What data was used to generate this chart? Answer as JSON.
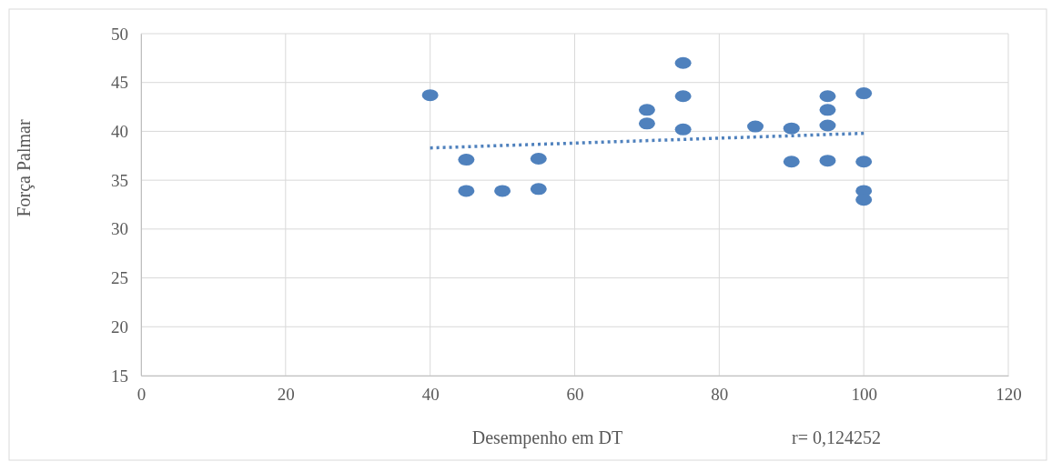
{
  "chart_data": {
    "type": "scatter",
    "xlabel": "Desempenho em DT",
    "ylabel": "Força Palmar",
    "xlim": [
      0,
      120
    ],
    "xticks": [
      0,
      20,
      40,
      60,
      80,
      100,
      120
    ],
    "ylim": [
      15,
      50
    ],
    "yticks": [
      15,
      20,
      25,
      30,
      35,
      40,
      45,
      50
    ],
    "grid": true,
    "marker": "circle",
    "annotations": [
      "r= 0,124252"
    ],
    "series": [
      {
        "color": "#4f81bd",
        "x": [
          40,
          45,
          45,
          50,
          55,
          55,
          70,
          70,
          75,
          75,
          75,
          85,
          90,
          90,
          95,
          95,
          95,
          95,
          100,
          100,
          100,
          100
        ],
        "values": [
          43.7,
          37.1,
          33.9,
          33.9,
          37.2,
          34.1,
          42.2,
          40.8,
          47.0,
          43.6,
          40.2,
          40.5,
          40.3,
          36.9,
          43.6,
          42.2,
          40.6,
          37.0,
          43.9,
          36.9,
          33.9,
          33.0
        ]
      },
      {
        "type": "line",
        "color": "#4f81bd",
        "line_style": "dotted",
        "marker": "none",
        "x": [
          40,
          100
        ],
        "values": [
          38.3,
          39.8
        ]
      }
    ]
  }
}
